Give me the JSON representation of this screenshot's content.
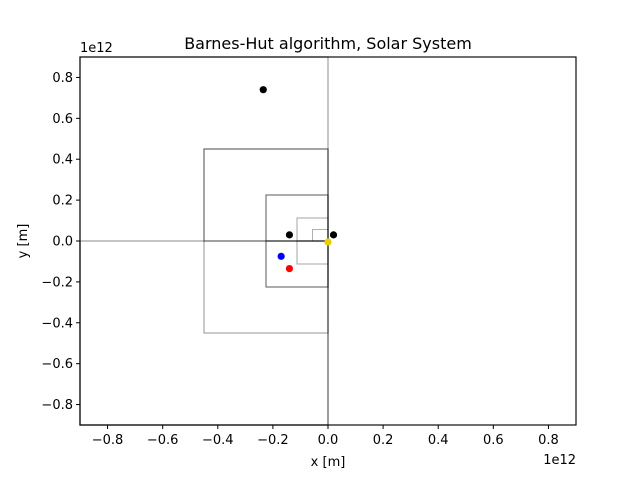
{
  "chart_data": {
    "type": "scatter",
    "title": "Barnes-Hut algorithm, Solar System",
    "xlabel": "x [m]",
    "ylabel": "y [m]",
    "x_offset_label": "1e12",
    "y_offset_label": "1e12",
    "xlim": [
      -0.9,
      0.9
    ],
    "ylim": [
      -0.9,
      0.9
    ],
    "xticks": [
      -0.8,
      -0.6,
      -0.4,
      -0.2,
      0.0,
      0.2,
      0.4,
      0.6,
      0.8
    ],
    "yticks": [
      -0.8,
      -0.6,
      -0.4,
      -0.2,
      0.0,
      0.2,
      0.4,
      0.6,
      0.8
    ],
    "xtick_labels": [
      "−0.8",
      "−0.6",
      "−0.4",
      "−0.2",
      "0.0",
      "0.2",
      "0.4",
      "0.6",
      "0.8"
    ],
    "ytick_labels": [
      "−0.8",
      "−0.6",
      "−0.4",
      "−0.2",
      "0.0",
      "0.2",
      "0.4",
      "0.6",
      "0.8"
    ],
    "grid": false,
    "points": [
      {
        "x": -0.235,
        "y": 0.74,
        "color": "#000000"
      },
      {
        "x": -0.14,
        "y": 0.03,
        "color": "#000000"
      },
      {
        "x": 0.02,
        "y": 0.03,
        "color": "#000000"
      },
      {
        "x": 0.0,
        "y": -0.005,
        "color": "#e8d000"
      },
      {
        "x": -0.17,
        "y": -0.075,
        "color": "#0000ff"
      },
      {
        "x": -0.14,
        "y": -0.135,
        "color": "#ff0000"
      }
    ],
    "quadtree_cells": [
      {
        "x0": -0.9,
        "x1": 0.9,
        "y0": -0.9,
        "y1": 0.9,
        "level": 0
      },
      {
        "x0": -0.9,
        "x1": 0.0,
        "y0": -0.9,
        "y1": 0.9,
        "level": 1
      },
      {
        "x0": -0.9,
        "x1": 0.0,
        "y0": -0.9,
        "y1": 0.0,
        "level": 1
      },
      {
        "x0": -0.45,
        "x1": 0.0,
        "y0": -0.45,
        "y1": 0.45,
        "level": 2
      },
      {
        "x0": -0.45,
        "x1": 0.0,
        "y0": 0.0,
        "y1": 0.45,
        "level": 2
      },
      {
        "x0": -0.225,
        "x1": 0.0,
        "y0": -0.225,
        "y1": 0.225,
        "level": 3
      },
      {
        "x0": -0.225,
        "x1": 0.0,
        "y0": 0.0,
        "y1": 0.225,
        "level": 3
      },
      {
        "x0": -0.225,
        "x1": 0.0,
        "y0": -0.225,
        "y1": 0.0,
        "level": 3
      },
      {
        "x0": -0.1125,
        "x1": 0.0,
        "y0": 0.0,
        "y1": 0.1125,
        "level": 4
      },
      {
        "x0": -0.1125,
        "x1": 0.0,
        "y0": -0.1125,
        "y1": 0.0,
        "level": 4
      },
      {
        "x0": -0.05625,
        "x1": 0.0,
        "y0": 0.0,
        "y1": 0.05625,
        "level": 5
      }
    ]
  }
}
